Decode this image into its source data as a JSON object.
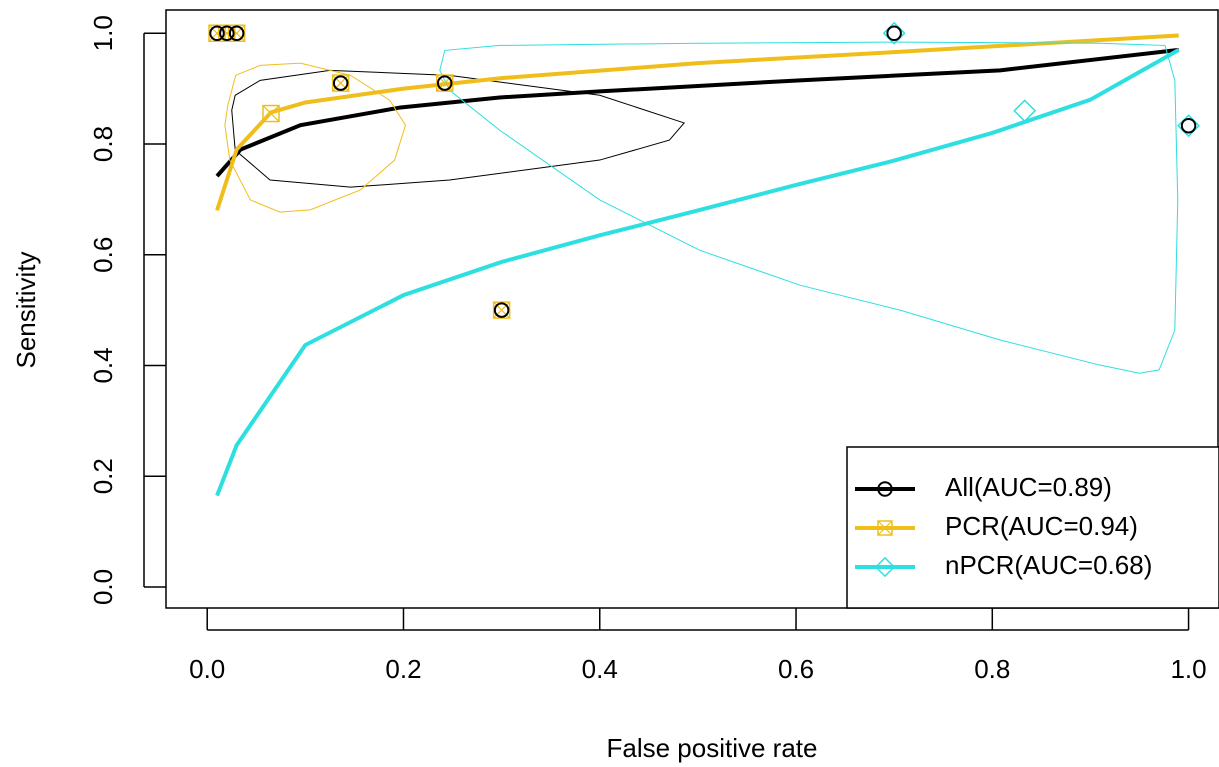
{
  "chart_data": {
    "type": "line",
    "x_label": "False positive rate",
    "y_label": "Sensitivity",
    "xlim": [
      -0.042,
      1.03
    ],
    "ylim": [
      -0.038,
      1.042
    ],
    "xticks": [
      {
        "value": 0,
        "label": "0.0"
      },
      0.2,
      0.4,
      0.6,
      0.8,
      {
        "value": 1,
        "label": "1.0"
      }
    ],
    "yticks": [
      {
        "value": 0,
        "label": "0.0"
      },
      0.2,
      0.4,
      0.6,
      0.8,
      {
        "value": 1,
        "label": "1.0"
      }
    ],
    "legend": "bottom-right",
    "series": [
      {
        "name": "All(AUC=0.89)",
        "color": "#000000",
        "marker": "circle",
        "x": [
          0.01,
          0.034,
          0.095,
          0.197,
          0.298,
          0.4,
          0.604,
          0.808,
          0.99
        ],
        "values": [
          0.742,
          0.79,
          0.834,
          0.866,
          0.884,
          0.895,
          0.915,
          0.933,
          0.97
        ],
        "points_x": [
          0.01,
          0.02,
          0.03,
          0.136,
          0.242,
          0.3,
          0.7,
          1.0
        ],
        "points_y": [
          1.0,
          1.0,
          1.0,
          0.91,
          0.91,
          0.5,
          1.0,
          0.833
        ],
        "region_x": [
          0.0285,
          0.054,
          0.125,
          0.247,
          0.4,
          0.486,
          0.471,
          0.4,
          0.247,
          0.146,
          0.064,
          0.0285,
          0.025
        ],
        "region_y": [
          0.888,
          0.915,
          0.933,
          0.924,
          0.888,
          0.838,
          0.807,
          0.771,
          0.735,
          0.722,
          0.735,
          0.789,
          0.861
        ]
      },
      {
        "name": "PCR(AUC=0.94)",
        "color": "#f0be1a",
        "marker": "square",
        "x": [
          0.01,
          0.03,
          0.065,
          0.1,
          0.2,
          0.3,
          0.5,
          0.7,
          0.99
        ],
        "values": [
          0.68,
          0.79,
          0.857,
          0.875,
          0.9,
          0.919,
          0.946,
          0.966,
          0.996
        ],
        "points_x": [
          0.01,
          0.02,
          0.03,
          0.065,
          0.136,
          0.242,
          0.3
        ],
        "points_y": [
          1.0,
          1.0,
          1.0,
          0.855,
          0.91,
          0.91,
          0.5
        ],
        "region_x": [
          0.021,
          0.029,
          0.054,
          0.095,
          0.146,
          0.186,
          0.202,
          0.191,
          0.156,
          0.105,
          0.074,
          0.044,
          0.023,
          0.018
        ],
        "region_y": [
          0.87,
          0.924,
          0.942,
          0.946,
          0.924,
          0.879,
          0.834,
          0.771,
          0.717,
          0.681,
          0.677,
          0.699,
          0.771,
          0.834
        ]
      },
      {
        "name": "nPCR(AUC=0.68)",
        "color": "#2ddfe0",
        "marker": "diamond",
        "x": [
          0.01,
          0.03,
          0.1,
          0.2,
          0.3,
          0.4,
          0.5,
          0.6,
          0.7,
          0.8,
          0.9,
          0.99
        ],
        "values": [
          0.165,
          0.256,
          0.437,
          0.527,
          0.587,
          0.635,
          0.68,
          0.726,
          0.77,
          0.82,
          0.88,
          0.97
        ],
        "points_x": [
          0.7,
          0.833,
          1.0
        ],
        "points_y": [
          1.0,
          0.86,
          0.833
        ],
        "region_x": [
          0.237,
          0.242,
          0.298,
          0.502,
          0.706,
          0.909,
          0.976,
          0.986,
          0.989,
          0.986,
          0.97,
          0.95,
          0.909,
          0.808,
          0.706,
          0.604,
          0.502,
          0.4,
          0.298,
          0.247
        ],
        "region_y": [
          0.933,
          0.969,
          0.978,
          0.982,
          0.984,
          0.982,
          0.978,
          0.915,
          0.699,
          0.464,
          0.392,
          0.386,
          0.401,
          0.446,
          0.5,
          0.545,
          0.608,
          0.699,
          0.825,
          0.897
        ]
      }
    ]
  }
}
